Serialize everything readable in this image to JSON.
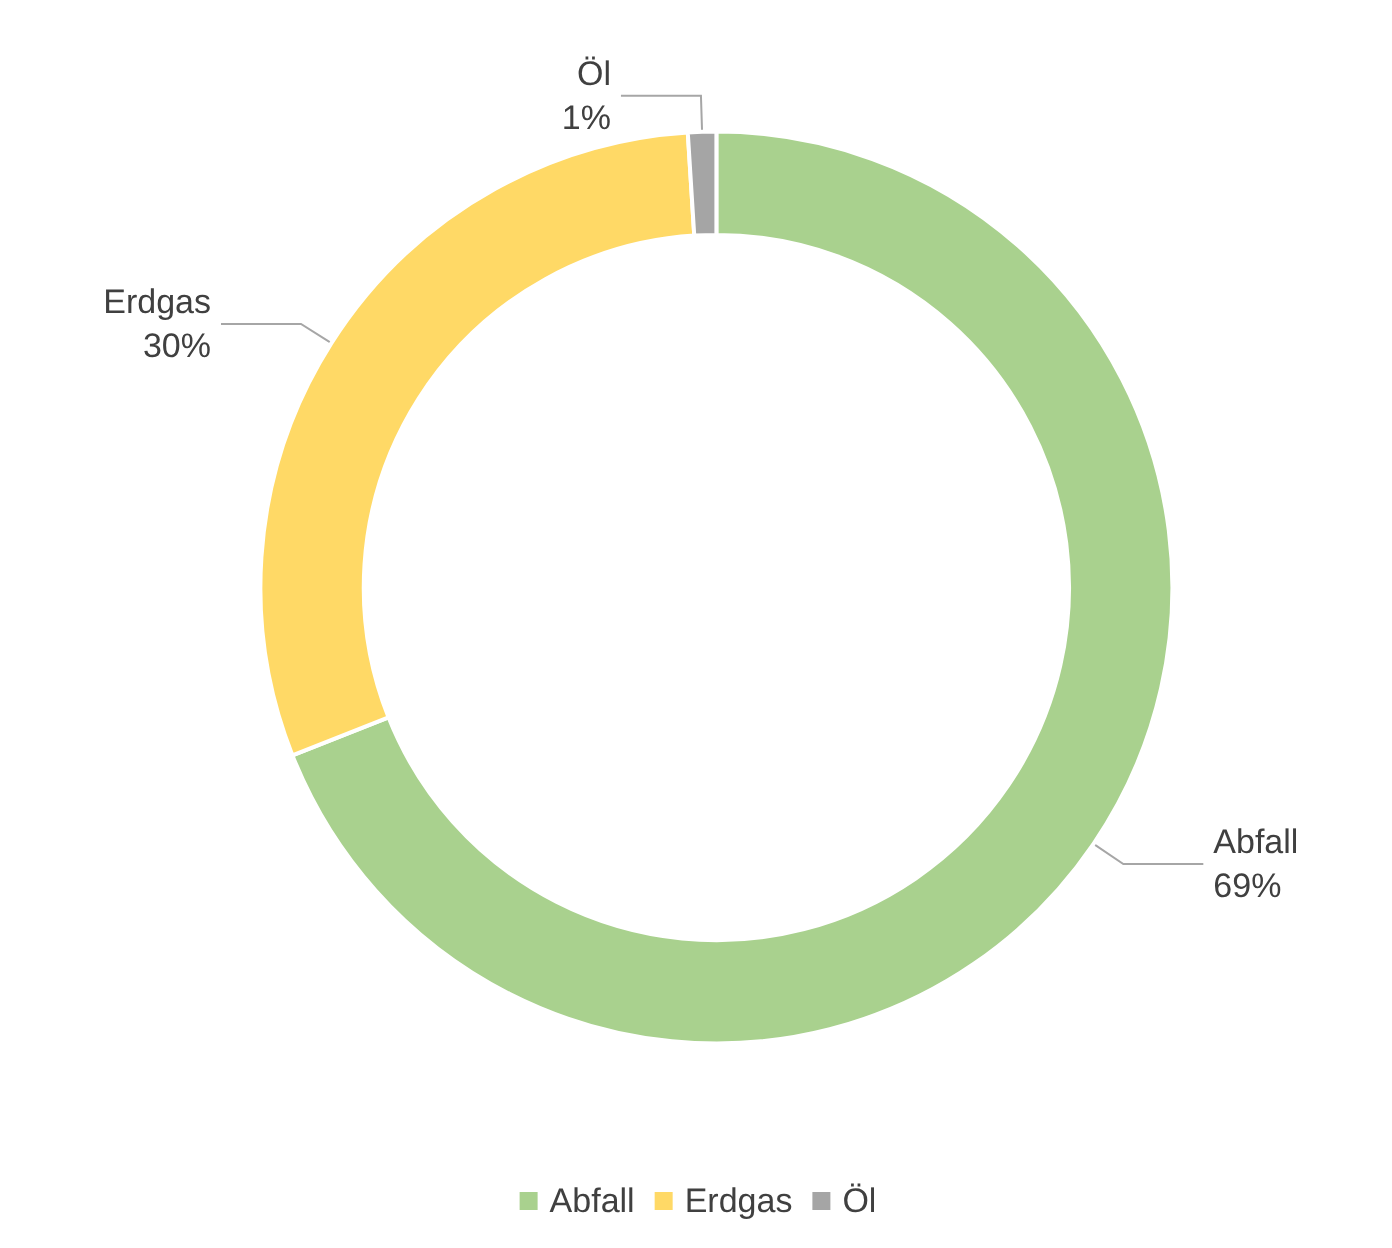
{
  "chart_data": {
    "type": "donut",
    "categories": [
      "Abfall",
      "Erdgas",
      "Öl"
    ],
    "values": [
      69,
      30,
      1
    ],
    "colors": [
      "#a9d18e",
      "#ffd966",
      "#a5a5a5"
    ],
    "value_labels": [
      "69%",
      "30%",
      "1%"
    ],
    "legend": "bottom"
  }
}
